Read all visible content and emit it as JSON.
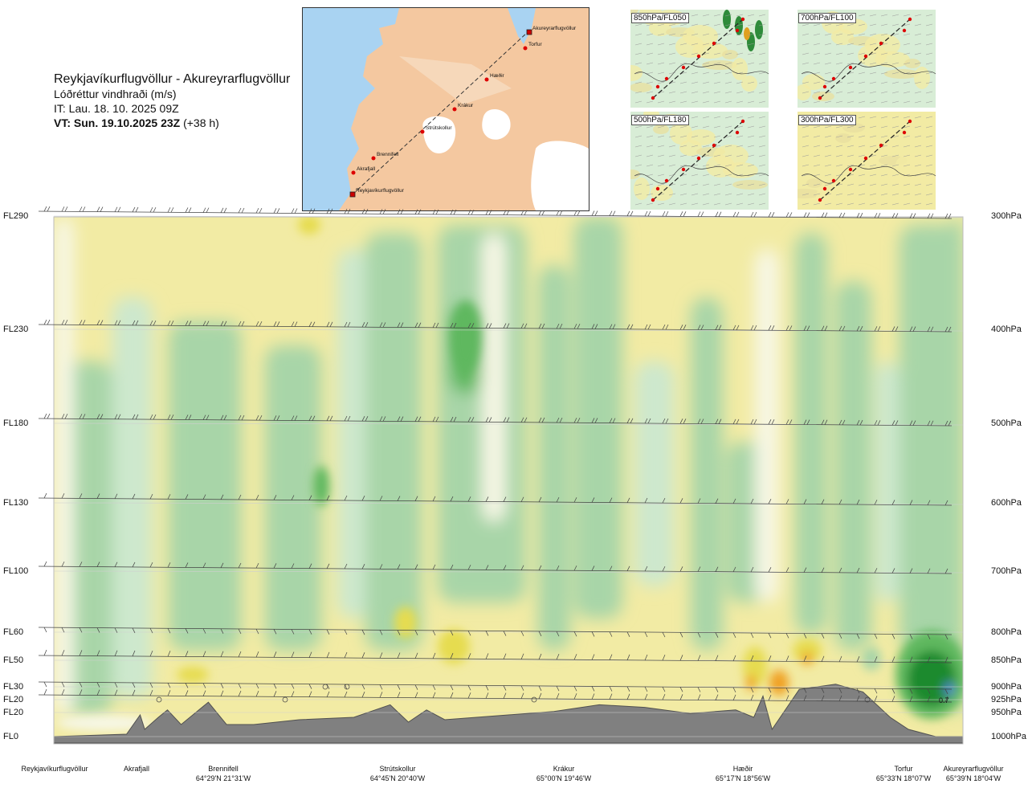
{
  "header": {
    "route": "Reykjavíkurflugvöllur - Akureyrarflugvöllur",
    "quantity": "Lóðréttur vindhraði (m/s)",
    "issue_time": "IT: Lau. 18. 10. 2025 09Z",
    "valid_time": "VT: Sun. 19.10.2025 23Z",
    "lead": "(+38 h)"
  },
  "map": {
    "waypoints": [
      "Akureyrarflugvöllur",
      "Torfur",
      "Hæðir",
      "Krákur",
      "Strútskollur",
      "Brennifell",
      "Akrafjall",
      "Reykjavíkurflugvöllur"
    ]
  },
  "minimaps": [
    {
      "label": "850hPa/FL050"
    },
    {
      "label": "700hPa/FL100"
    },
    {
      "label": "500hPa/FL180"
    },
    {
      "label": "300hPa/FL300"
    }
  ],
  "levels": [
    {
      "fl": "FL290",
      "hpa": "300hPa"
    },
    {
      "fl": "FL230",
      "hpa": "400hPa"
    },
    {
      "fl": "FL180",
      "hpa": "500hPa"
    },
    {
      "fl": "FL130",
      "hpa": "600hPa"
    },
    {
      "fl": "FL100",
      "hpa": "700hPa"
    },
    {
      "fl": "FL60",
      "hpa": "800hPa"
    },
    {
      "fl": "FL50",
      "hpa": "850hPa"
    },
    {
      "fl": "FL30",
      "hpa": "900hPa"
    },
    {
      "fl": "FL20",
      "hpa": "925hPa"
    },
    {
      "fl": "FL20",
      "hpa": "950hPa"
    },
    {
      "fl": "FL0",
      "hpa": "1000hPa"
    }
  ],
  "locations": [
    {
      "name": "Reykjavíkurflugvöllur",
      "coord": ""
    },
    {
      "name": "Akrafjall",
      "coord": ""
    },
    {
      "name": "Brennifell",
      "coord": "64°29'N 21°31'W"
    },
    {
      "name": "Strútskollur",
      "coord": "64°45'N 20°40'W"
    },
    {
      "name": "Krákur",
      "coord": "65°00'N 19°46'W"
    },
    {
      "name": "Hæðir",
      "coord": "65°17'N 18°56'W"
    },
    {
      "name": "Torfur",
      "coord": "65°33'N 18°07'W"
    },
    {
      "name": "Akureyrarflugvöllur",
      "coord": "65°39'N 18°04'W"
    }
  ],
  "colors": {
    "strong_down": "#1f8a2e",
    "down": "#5fb85f",
    "weak_down": "#a8d5a8",
    "slight_down": "#cde8cd",
    "neutral": "#f7f7e6",
    "slight_up": "#f2eba4",
    "up": "#e6dc4f",
    "strong_up": "#f0a020",
    "terrain": "#808080",
    "ocean": "#a9d3f2",
    "land": "#f4c8a0"
  },
  "chart_data": {
    "type": "heatmap",
    "title": "Lóðréttur vindhraði (m/s)",
    "xlabel": "",
    "ylabel": "",
    "y_levels_hpa": [
      300,
      400,
      500,
      600,
      700,
      800,
      850,
      900,
      925,
      950,
      1000
    ],
    "annotations": [
      {
        "text": "0.7",
        "near": "Akureyrarflugvöllur",
        "level_hpa": 925
      }
    ],
    "terrain_profile": [
      {
        "pos": 0.0,
        "hpa": 1000
      },
      {
        "pos": 0.08,
        "hpa": 995
      },
      {
        "pos": 0.095,
        "hpa": 955
      },
      {
        "pos": 0.1,
        "hpa": 985
      },
      {
        "pos": 0.115,
        "hpa": 960
      },
      {
        "pos": 0.125,
        "hpa": 945
      },
      {
        "pos": 0.14,
        "hpa": 975
      },
      {
        "pos": 0.17,
        "hpa": 930
      },
      {
        "pos": 0.19,
        "hpa": 975
      },
      {
        "pos": 0.22,
        "hpa": 975
      },
      {
        "pos": 0.27,
        "hpa": 965
      },
      {
        "pos": 0.33,
        "hpa": 960
      },
      {
        "pos": 0.37,
        "hpa": 935
      },
      {
        "pos": 0.39,
        "hpa": 970
      },
      {
        "pos": 0.41,
        "hpa": 945
      },
      {
        "pos": 0.43,
        "hpa": 965
      },
      {
        "pos": 0.5,
        "hpa": 955
      },
      {
        "pos": 0.55,
        "hpa": 948
      },
      {
        "pos": 0.6,
        "hpa": 935
      },
      {
        "pos": 0.65,
        "hpa": 940
      },
      {
        "pos": 0.7,
        "hpa": 952
      },
      {
        "pos": 0.75,
        "hpa": 945
      },
      {
        "pos": 0.77,
        "hpa": 960
      },
      {
        "pos": 0.78,
        "hpa": 918
      },
      {
        "pos": 0.79,
        "hpa": 985
      },
      {
        "pos": 0.82,
        "hpa": 905
      },
      {
        "pos": 0.86,
        "hpa": 895
      },
      {
        "pos": 0.89,
        "hpa": 910
      },
      {
        "pos": 0.92,
        "hpa": 960
      },
      {
        "pos": 0.94,
        "hpa": 985
      },
      {
        "pos": 0.97,
        "hpa": 1000
      },
      {
        "pos": 1.0,
        "hpa": 1000
      }
    ]
  }
}
